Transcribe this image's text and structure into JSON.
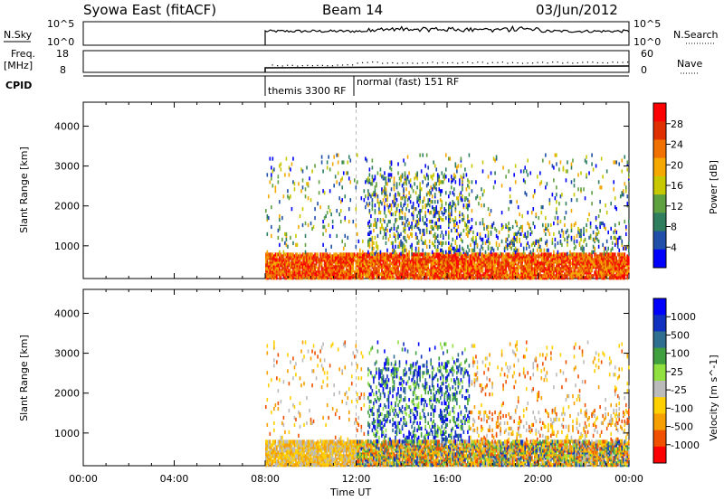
{
  "header": {
    "title": "Syowa East (fitACF)",
    "beam": "Beam 14",
    "date": "03/Jun/2012"
  },
  "strips": {
    "nsky": {
      "label": "N.Sky",
      "tick_top": "10^5",
      "tick_bottom": "10^0"
    },
    "nsearch": {
      "label": "N.Search",
      "tick_top": "10^5",
      "tick_bottom": "10^0"
    },
    "freq": {
      "label_line1": "Freq.",
      "label_line2": "[MHz]",
      "tick_top": "18",
      "tick_bottom": "8"
    },
    "nave": {
      "label": "Nave",
      "tick_top": "60",
      "tick_bottom": "0"
    },
    "cpid": {
      "label": "CPID"
    }
  },
  "cpid_annotations": [
    {
      "text": "themis 3300 RF",
      "start_hour": 8.0
    },
    {
      "text": "normal (fast) 151 RF",
      "start_hour": 11.9
    }
  ],
  "colors": {
    "power": [
      "#0000ff",
      "#1f4fa8",
      "#2f7f5f",
      "#5fa040",
      "#c8c800",
      "#f5a800",
      "#f07000",
      "#e03000",
      "#ff0000"
    ],
    "velocity": [
      "#ff0000",
      "#f05000",
      "#f5a000",
      "#ffd000",
      "#bbbbbb",
      "#90e040",
      "#40a040",
      "#2f6f90",
      "#1030c0",
      "#0000ff"
    ]
  },
  "chart_data": [
    {
      "type": "heatmap",
      "panel": "power",
      "xlabel": "",
      "ylabel": "Slant Range [km]",
      "xlim": [
        0,
        24
      ],
      "ylim": [
        180,
        4600
      ],
      "yticks": [
        1000,
        2000,
        3000,
        4000
      ],
      "colorbar": {
        "label": "Power [dB]",
        "range": [
          0,
          32
        ],
        "ticks": [
          "4",
          "8",
          "12",
          "16",
          "20",
          "24",
          "28"
        ]
      },
      "activity": [
        {
          "hours": [
            8.0,
            24.0
          ],
          "range_km": [
            180,
            800
          ],
          "level": "high"
        },
        {
          "hours": [
            12.5,
            17.0
          ],
          "range_km": [
            800,
            2800
          ],
          "level": "medium"
        },
        {
          "hours": [
            8.0,
            24.0
          ],
          "range_km": [
            800,
            3300
          ],
          "level": "scattered"
        }
      ]
    },
    {
      "type": "heatmap",
      "panel": "velocity",
      "xlabel": "Time UT",
      "ylabel": "Slant Range [km]",
      "xlim": [
        0,
        24
      ],
      "ylim": [
        180,
        4600
      ],
      "yticks": [
        1000,
        2000,
        3000,
        4000
      ],
      "xticks": [
        "00:00",
        "04:00",
        "08:00",
        "12:00",
        "16:00",
        "20:00",
        "00:00"
      ],
      "colorbar": {
        "label": "Velocity [m s^-1]",
        "ticks": [
          "1000",
          "500",
          "100",
          "25",
          "-25",
          "-100",
          "-500",
          "-1000"
        ]
      },
      "activity": [
        {
          "hours": [
            8.0,
            24.0
          ],
          "range_km": [
            180,
            800
          ],
          "level": "high"
        },
        {
          "hours": [
            12.5,
            17.0
          ],
          "range_km": [
            800,
            2800
          ],
          "level": "medium"
        },
        {
          "hours": [
            8.0,
            24.0
          ],
          "range_km": [
            800,
            3300
          ],
          "level": "scattered"
        }
      ]
    }
  ]
}
